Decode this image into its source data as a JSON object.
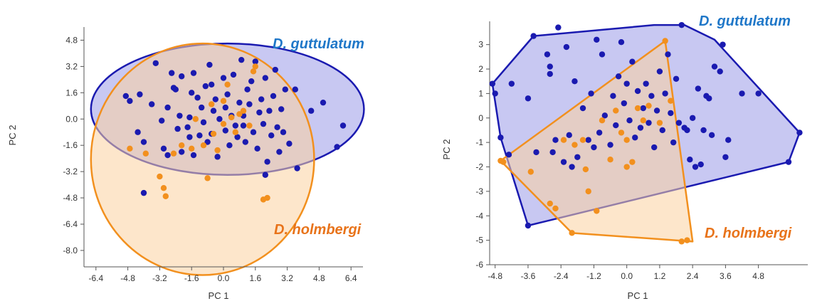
{
  "chart_data": [
    {
      "type": "scatter",
      "enclosure": "ellipse",
      "xlabel": "PC 1",
      "ylabel": "PC 2",
      "xlim": [
        -7.0,
        7.0
      ],
      "ylim": [
        -9.0,
        5.6
      ],
      "xticks": [
        "-6.4",
        "-4.8",
        "-3.2",
        "-1.6",
        "0.0",
        "1.6",
        "3.2",
        "4.8",
        "6.4"
      ],
      "yticks": [
        "4.8",
        "3.2",
        "1.6",
        "0.0",
        "-1.6",
        "-3.2",
        "-4.8",
        "-6.4",
        "-8.0"
      ],
      "grid": false,
      "series": [
        {
          "name": "D. guttulatum",
          "color": "#1a1ab0",
          "fill": "#9a9ae8",
          "label_position": "top-right",
          "ellipse": {
            "cx": 0.2,
            "cy": 0.6,
            "rx": 6.85,
            "ry": 4.0
          },
          "points": [
            [
              -4.9,
              1.4
            ],
            [
              -4.7,
              1.1
            ],
            [
              -4.3,
              -0.8
            ],
            [
              -4.0,
              -1.4
            ],
            [
              -4.2,
              1.5
            ],
            [
              -3.6,
              0.9
            ],
            [
              -3.4,
              3.4
            ],
            [
              -3.1,
              -0.1
            ],
            [
              -3.0,
              -1.8
            ],
            [
              -2.8,
              0.7
            ],
            [
              -2.8,
              -2.2
            ],
            [
              -2.6,
              2.8
            ],
            [
              -2.5,
              1.9
            ],
            [
              -2.4,
              1.8
            ],
            [
              -2.3,
              -0.6
            ],
            [
              -2.2,
              0.2
            ],
            [
              -2.1,
              -2.0
            ],
            [
              -2.1,
              2.6
            ],
            [
              -1.8,
              -0.5
            ],
            [
              -1.7,
              0.1
            ],
            [
              -1.7,
              -1.1
            ],
            [
              -1.6,
              1.6
            ],
            [
              -1.5,
              2.8
            ],
            [
              -1.5,
              -2.2
            ],
            [
              -1.3,
              1.3
            ],
            [
              -1.2,
              -1.0
            ],
            [
              -1.1,
              0.7
            ],
            [
              -1.0,
              -0.2
            ],
            [
              -0.9,
              2.0
            ],
            [
              -0.8,
              -1.4
            ],
            [
              -0.7,
              3.3
            ],
            [
              -0.6,
              -0.9
            ],
            [
              -0.5,
              0.5
            ],
            [
              -0.4,
              1.2
            ],
            [
              -0.3,
              -2.3
            ],
            [
              -0.2,
              0.0
            ],
            [
              0.0,
              2.5
            ],
            [
              0.1,
              -0.7
            ],
            [
              0.1,
              0.7
            ],
            [
              0.2,
              1.5
            ],
            [
              0.3,
              -1.6
            ],
            [
              0.4,
              0.2
            ],
            [
              0.5,
              2.7
            ],
            [
              0.6,
              -0.4
            ],
            [
              0.7,
              -1.1
            ],
            [
              0.8,
              1.0
            ],
            [
              0.9,
              3.6
            ],
            [
              1.0,
              0.2
            ],
            [
              1.0,
              -0.4
            ],
            [
              1.1,
              -1.4
            ],
            [
              1.2,
              1.8
            ],
            [
              1.3,
              0.9
            ],
            [
              1.4,
              2.3
            ],
            [
              1.5,
              -0.8
            ],
            [
              1.6,
              3.5
            ],
            [
              1.7,
              -1.8
            ],
            [
              1.8,
              0.4
            ],
            [
              1.9,
              1.2
            ],
            [
              2.0,
              -0.3
            ],
            [
              2.1,
              2.5
            ],
            [
              2.2,
              -2.6
            ],
            [
              2.3,
              0.5
            ],
            [
              2.4,
              -1.0
            ],
            [
              2.5,
              1.4
            ],
            [
              2.6,
              3.0
            ],
            [
              2.7,
              -0.5
            ],
            [
              2.8,
              -2.0
            ],
            [
              2.9,
              0.6
            ],
            [
              3.0,
              -0.8
            ],
            [
              3.1,
              1.8
            ],
            [
              3.3,
              -1.5
            ],
            [
              3.6,
              1.8
            ],
            [
              3.7,
              -3.0
            ],
            [
              4.4,
              0.5
            ],
            [
              5.0,
              1.0
            ],
            [
              6.0,
              -0.4
            ],
            [
              5.7,
              -1.7
            ],
            [
              -4.0,
              -4.5
            ],
            [
              2.1,
              -3.4
            ],
            [
              -0.6,
              2.1
            ]
          ]
        },
        {
          "name": "D. holmbergi",
          "color": "#f2901e",
          "fill": "#fbd2a1",
          "label_position": "bottom-right",
          "ellipse": {
            "cx": -1.05,
            "cy": -2.45,
            "rx": 5.6,
            "ry": 7.05
          },
          "points": [
            [
              -4.7,
              -1.8
            ],
            [
              -3.9,
              -2.1
            ],
            [
              -3.2,
              -3.5
            ],
            [
              -3.0,
              -4.2
            ],
            [
              -2.9,
              -4.7
            ],
            [
              -2.5,
              -2.1
            ],
            [
              -2.1,
              -1.6
            ],
            [
              -1.6,
              -1.8
            ],
            [
              -1.4,
              0.0
            ],
            [
              -1.0,
              -1.6
            ],
            [
              -0.8,
              -3.6
            ],
            [
              -0.5,
              -0.9
            ],
            [
              -0.3,
              -1.9
            ],
            [
              0.0,
              -0.3
            ],
            [
              0.2,
              2.1
            ],
            [
              0.4,
              0.1
            ],
            [
              0.6,
              -0.8
            ],
            [
              0.8,
              0.3
            ],
            [
              1.0,
              0.5
            ],
            [
              1.3,
              -0.4
            ],
            [
              1.5,
              2.9
            ],
            [
              1.6,
              3.2
            ],
            [
              2.0,
              -4.9
            ],
            [
              2.2,
              -4.8
            ],
            [
              0.0,
              1.1
            ],
            [
              -0.6,
              0.9
            ]
          ]
        }
      ]
    },
    {
      "type": "scatter",
      "enclosure": "convex-hull",
      "xlabel": "PC 1",
      "ylabel": "PC 2",
      "xlim": [
        -5.0,
        6.6
      ],
      "ylim": [
        -6.0,
        3.95
      ],
      "xticks": [
        "-4.8",
        "-3.6",
        "-2.4",
        "-1.2",
        "0.0",
        "1.2",
        "2.4",
        "3.6",
        "4.8"
      ],
      "yticks": [
        "3",
        "2",
        "1",
        "0",
        "-1",
        "-2",
        "-3",
        "-4",
        "-5",
        "-6"
      ],
      "grid": false,
      "series": [
        {
          "name": "D. guttulatum",
          "color": "#1a1ab0",
          "fill": "#9a9ae8",
          "label_position": "top-right",
          "hull": [
            [
              -4.9,
              1.4
            ],
            [
              -3.4,
              3.35
            ],
            [
              1.0,
              3.8
            ],
            [
              2.1,
              3.8
            ],
            [
              3.2,
              3.2
            ],
            [
              6.3,
              -0.6
            ],
            [
              5.9,
              -1.8
            ],
            [
              -3.6,
              -4.4
            ],
            [
              -4.6,
              -0.8
            ]
          ],
          "points": [
            [
              -4.9,
              1.4
            ],
            [
              -4.8,
              1.0
            ],
            [
              -4.6,
              -0.8
            ],
            [
              -4.2,
              1.4
            ],
            [
              -4.3,
              -1.5
            ],
            [
              -3.6,
              -4.4
            ],
            [
              -3.4,
              3.35
            ],
            [
              -3.6,
              0.8
            ],
            [
              -3.3,
              -1.4
            ],
            [
              -2.9,
              2.6
            ],
            [
              -2.8,
              2.1
            ],
            [
              -2.8,
              1.8
            ],
            [
              -2.7,
              -1.4
            ],
            [
              -2.6,
              -0.9
            ],
            [
              -2.5,
              3.7
            ],
            [
              -2.3,
              -1.8
            ],
            [
              -2.2,
              2.9
            ],
            [
              -2.1,
              -0.7
            ],
            [
              -2.0,
              -2.0
            ],
            [
              -1.9,
              1.5
            ],
            [
              -1.8,
              -1.6
            ],
            [
              -1.6,
              0.4
            ],
            [
              -1.4,
              -0.9
            ],
            [
              -1.3,
              1.0
            ],
            [
              -1.2,
              -1.2
            ],
            [
              -1.1,
              3.2
            ],
            [
              -1.0,
              -0.6
            ],
            [
              -0.9,
              2.6
            ],
            [
              -0.8,
              0.1
            ],
            [
              -0.6,
              -1.1
            ],
            [
              -0.5,
              0.9
            ],
            [
              -0.4,
              -0.3
            ],
            [
              -0.3,
              1.7
            ],
            [
              -0.2,
              3.1
            ],
            [
              -0.1,
              0.6
            ],
            [
              0.0,
              1.4
            ],
            [
              0.1,
              -0.1
            ],
            [
              0.2,
              2.3
            ],
            [
              0.3,
              -0.8
            ],
            [
              0.4,
              1.1
            ],
            [
              0.5,
              -0.4
            ],
            [
              0.6,
              0.4
            ],
            [
              0.7,
              1.4
            ],
            [
              0.8,
              -0.2
            ],
            [
              0.9,
              0.9
            ],
            [
              1.0,
              -1.2
            ],
            [
              1.1,
              0.3
            ],
            [
              1.2,
              1.9
            ],
            [
              1.3,
              -0.5
            ],
            [
              1.4,
              1.0
            ],
            [
              1.5,
              2.6
            ],
            [
              1.6,
              0.2
            ],
            [
              1.7,
              -1.0
            ],
            [
              1.8,
              1.6
            ],
            [
              1.9,
              -0.2
            ],
            [
              2.0,
              3.8
            ],
            [
              2.1,
              -0.4
            ],
            [
              2.2,
              -0.5
            ],
            [
              2.3,
              -1.7
            ],
            [
              2.4,
              0.0
            ],
            [
              2.5,
              -2.0
            ],
            [
              2.6,
              1.2
            ],
            [
              2.7,
              -1.9
            ],
            [
              2.8,
              -0.5
            ],
            [
              2.9,
              0.9
            ],
            [
              3.0,
              0.8
            ],
            [
              3.1,
              -0.7
            ],
            [
              3.2,
              2.1
            ],
            [
              3.4,
              1.9
            ],
            [
              3.6,
              -1.6
            ],
            [
              3.7,
              -0.9
            ],
            [
              4.2,
              1.0
            ],
            [
              4.8,
              1.0
            ],
            [
              5.9,
              -1.8
            ],
            [
              6.3,
              -0.6
            ],
            [
              3.5,
              3.0
            ]
          ]
        },
        {
          "name": "D. holmbergi",
          "color": "#f2901e",
          "fill": "#fbd2a1",
          "label_position": "bottom-right",
          "hull": [
            [
              -4.6,
              -1.75
            ],
            [
              1.4,
              3.15
            ],
            [
              2.4,
              -5.05
            ],
            [
              -2.0,
              -4.7
            ]
          ],
          "points": [
            [
              -4.6,
              -1.75
            ],
            [
              -4.5,
              -1.8
            ],
            [
              -3.5,
              -2.2
            ],
            [
              -2.8,
              -3.5
            ],
            [
              -2.6,
              -3.7
            ],
            [
              -2.3,
              -0.9
            ],
            [
              -2.0,
              -4.7
            ],
            [
              -1.9,
              -1.1
            ],
            [
              -1.5,
              -2.1
            ],
            [
              -1.4,
              -3.0
            ],
            [
              -1.1,
              -3.8
            ],
            [
              -0.9,
              -0.1
            ],
            [
              -0.6,
              -1.7
            ],
            [
              -0.4,
              0.3
            ],
            [
              -0.2,
              -0.6
            ],
            [
              0.0,
              -0.9
            ],
            [
              0.0,
              -2.0
            ],
            [
              0.2,
              -1.8
            ],
            [
              0.4,
              0.4
            ],
            [
              0.6,
              -0.1
            ],
            [
              0.8,
              0.5
            ],
            [
              1.2,
              -0.2
            ],
            [
              1.4,
              3.15
            ],
            [
              1.6,
              0.7
            ],
            [
              2.0,
              -5.05
            ],
            [
              2.2,
              -5.0
            ],
            [
              -1.6,
              -0.9
            ]
          ]
        }
      ]
    }
  ]
}
